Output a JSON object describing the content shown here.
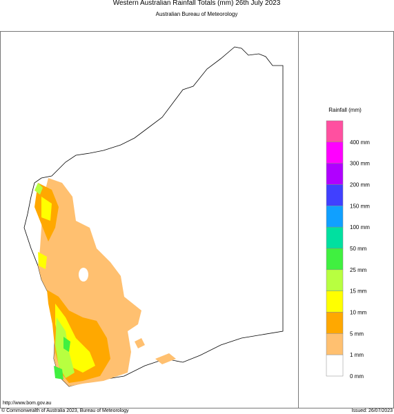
{
  "header": {
    "title": "Western Australian Rainfall Totals (mm) 26th July 2023",
    "subtitle": "Australian Bureau of Meteorology"
  },
  "legend": {
    "title": "Rainfall (mm)",
    "items": [
      {
        "color": "#ff50a0",
        "label": "400 mm"
      },
      {
        "color": "#ff00ff",
        "label": "300 mm"
      },
      {
        "color": "#b000ff",
        "label": "200 mm"
      },
      {
        "color": "#4040ff",
        "label": "150 mm"
      },
      {
        "color": "#10a0ff",
        "label": "100 mm"
      },
      {
        "color": "#00e0a0",
        "label": "50 mm"
      },
      {
        "color": "#40f040",
        "label": "25 mm"
      },
      {
        "color": "#b8ff40",
        "label": "15 mm"
      },
      {
        "color": "#ffff00",
        "label": "10 mm"
      },
      {
        "color": "#ffa800",
        "label": "5 mm"
      },
      {
        "color": "#ffc070",
        "label": "1 mm"
      },
      {
        "color": "#ffffff",
        "label": "0 mm"
      }
    ]
  },
  "footer": {
    "url": "http://www.bom.gov.au",
    "copyright": "© Commonwealth of Australia 2023, Bureau of Meteorology",
    "issued": "Issued: 26/07/2023"
  }
}
